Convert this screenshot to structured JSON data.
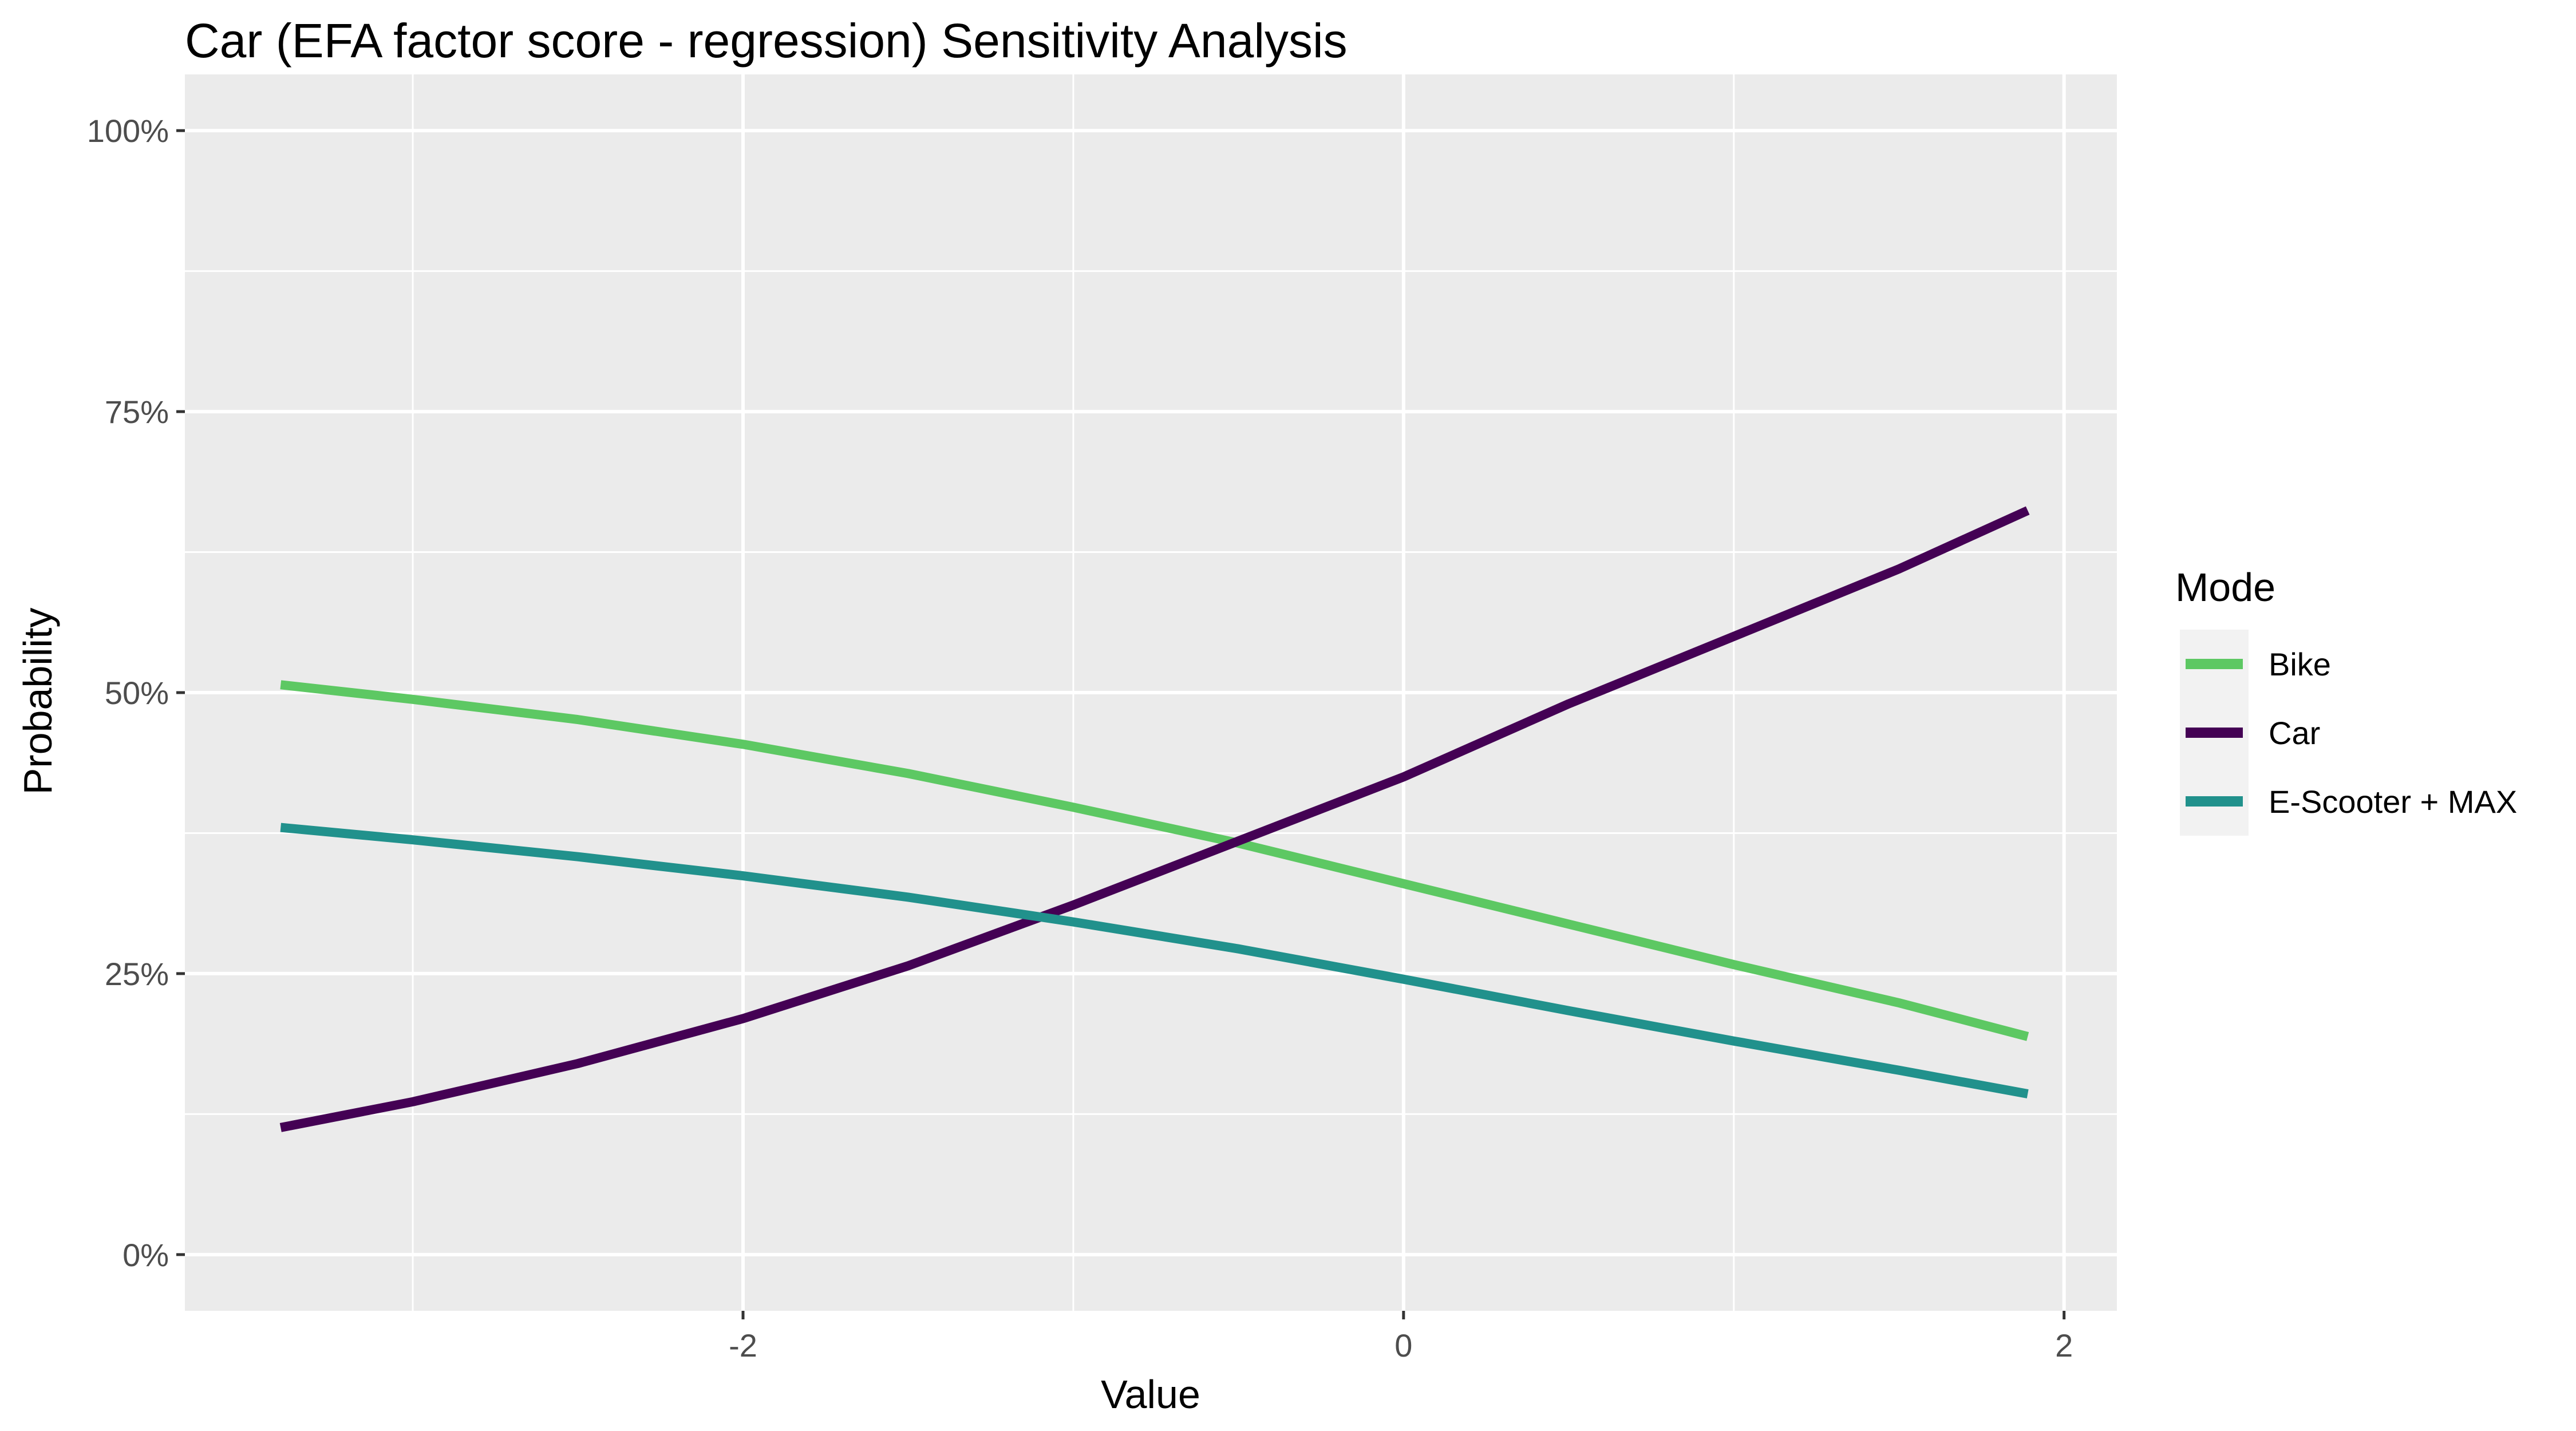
{
  "chart_data": {
    "type": "line",
    "title": "Car (EFA factor score - regression) Sensitivity Analysis",
    "xlabel": "Value",
    "ylabel": "Probability",
    "xlim": [
      -3.69,
      2.16
    ],
    "ylim": [
      -0.05,
      1.05
    ],
    "x_ticks": [
      -2,
      0,
      2
    ],
    "x_tick_labels": [
      "-2",
      "0",
      "2"
    ],
    "x_minor_ticks": [
      -3,
      -1,
      1
    ],
    "y_ticks": [
      0,
      0.25,
      0.5,
      0.75,
      1.0
    ],
    "y_tick_labels": [
      "0%",
      "25%",
      "50%",
      "75%",
      "100%"
    ],
    "y_minor_ticks": [
      0.125,
      0.375,
      0.625,
      0.875
    ],
    "grid": true,
    "legend": {
      "title": "Mode",
      "position": "right"
    },
    "x": [
      -3.4,
      -3.0,
      -2.5,
      -2.0,
      -1.5,
      -1.0,
      -0.5,
      0.0,
      0.5,
      1.0,
      1.5,
      1.89
    ],
    "series": [
      {
        "name": "Bike",
        "color": "#5dc863",
        "values": [
          0.507,
          0.494,
          0.476,
          0.454,
          0.428,
          0.398,
          0.366,
          0.33,
          0.294,
          0.258,
          0.224,
          0.194
        ]
      },
      {
        "name": "Car",
        "color": "#440154",
        "values": [
          0.113,
          0.136,
          0.17,
          0.21,
          0.257,
          0.311,
          0.368,
          0.425,
          0.49,
          0.55,
          0.61,
          0.662
        ]
      },
      {
        "name": "E-Scooter + MAX",
        "color": "#21918c",
        "values": [
          0.38,
          0.369,
          0.354,
          0.337,
          0.318,
          0.296,
          0.272,
          0.245,
          0.217,
          0.19,
          0.164,
          0.143
        ]
      }
    ]
  }
}
